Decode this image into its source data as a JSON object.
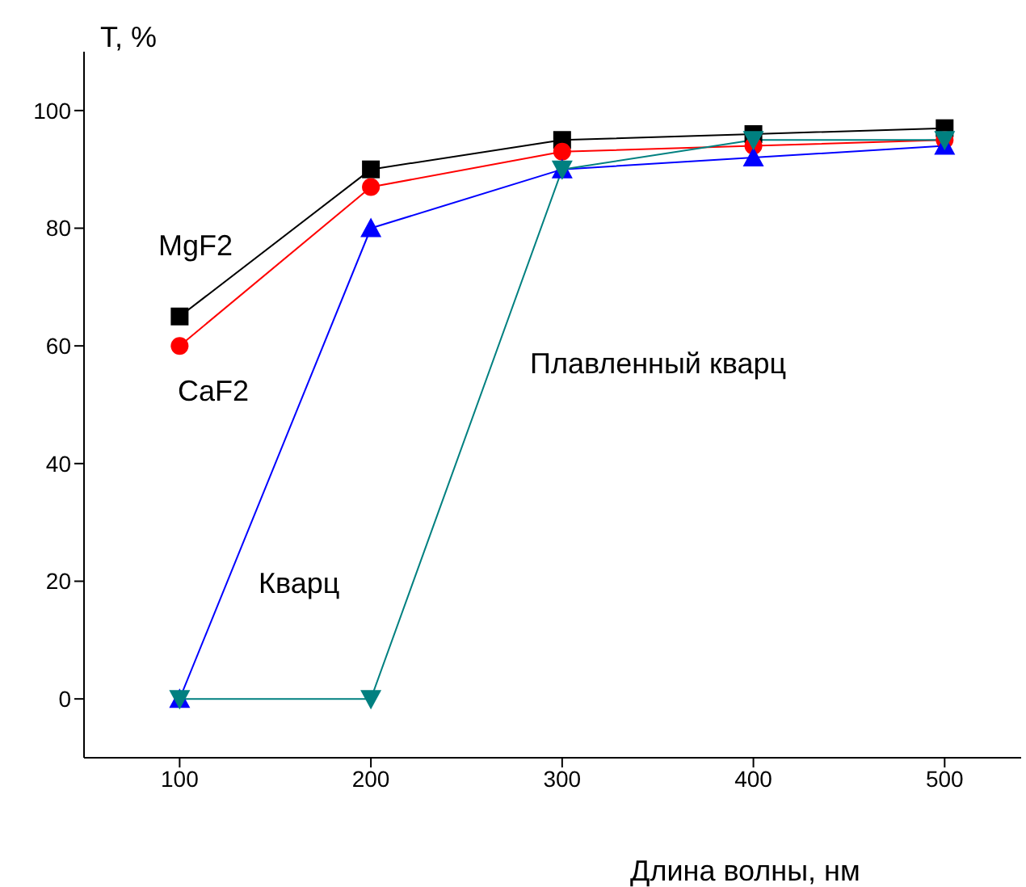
{
  "chart_data": {
    "type": "line",
    "xlabel": "Длина волны, нм",
    "ylabel": "T, %",
    "x": [
      100,
      200,
      300,
      400,
      500
    ],
    "xlim": [
      50,
      540
    ],
    "xticks": [
      100,
      200,
      300,
      400,
      500
    ],
    "ylim": [
      -10,
      110
    ],
    "yticks": [
      0,
      20,
      40,
      60,
      80,
      100
    ],
    "grid": false,
    "legend": false,
    "series": [
      {
        "name": "MgF2",
        "color": "#000000",
        "marker": "square",
        "values": [
          65,
          90,
          95,
          96,
          97
        ]
      },
      {
        "name": "CaF2",
        "color": "#ff0000",
        "marker": "circle",
        "values": [
          60,
          87,
          93,
          94,
          95
        ]
      },
      {
        "name": "Кварц",
        "color": "#0000ff",
        "marker": "triangle",
        "values": [
          0,
          80,
          90,
          92,
          94
        ]
      },
      {
        "name": "Плавленный кварц",
        "color": "#008080",
        "marker": "triangle-down",
        "values": [
          0,
          0,
          90,
          95,
          95
        ]
      }
    ]
  }
}
